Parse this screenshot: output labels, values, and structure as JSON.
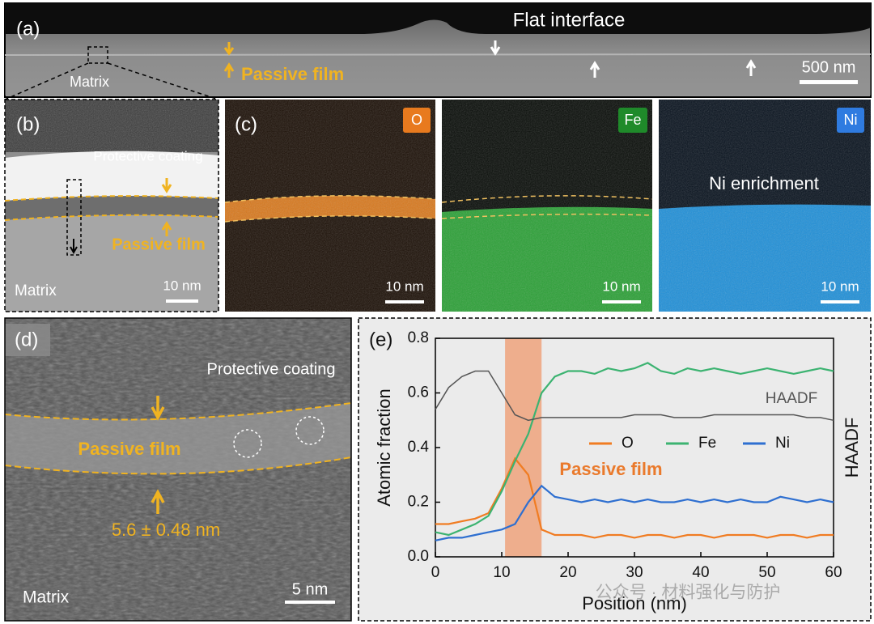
{
  "panels": {
    "a": {
      "label": "(a)",
      "flat_interface": "Flat interface",
      "passive_film": "Passive film",
      "matrix": "Matrix",
      "scale_bar": "500 nm"
    },
    "b": {
      "label": "(b)",
      "protective_coating": "Protective coating",
      "passive_film": "Passive film",
      "matrix": "Matrix",
      "scale_bar": "10 nm"
    },
    "c": {
      "label": "(c)",
      "annotation": "Ni enrichment",
      "maps": [
        {
          "element": "O",
          "scale_bar": "10 nm"
        },
        {
          "element": "Fe",
          "scale_bar": "10 nm"
        },
        {
          "element": "Ni",
          "scale_bar": "10 nm"
        }
      ]
    },
    "d": {
      "label": "(d)",
      "protective_coating": "Protective coating",
      "passive_film": "Passive film",
      "thickness": "5.6 ± 0.48 nm",
      "matrix": "Matrix",
      "scale_bar": "5 nm"
    }
  },
  "chart_data": {
    "type": "line",
    "panel_label": "(e)",
    "x_label": "Position (nm)",
    "y_label": "Atomic fraction",
    "y2_label": "HAADF",
    "annotation": "Passive film",
    "shaded_span": [
      10.5,
      16
    ],
    "xlim": [
      0,
      60
    ],
    "xticks": [
      0,
      10,
      20,
      30,
      40,
      50,
      60
    ],
    "ylim": [
      0,
      0.8
    ],
    "yticks": [
      {
        "value": 0,
        "label": "0.0"
      },
      {
        "value": 0.2,
        "label": "0.2"
      },
      {
        "value": 0.4,
        "label": "0.4"
      },
      {
        "value": 0.6,
        "label": "0.6"
      },
      {
        "value": 0.8,
        "label": "0.8"
      }
    ],
    "x": [
      0,
      2,
      4,
      6,
      8,
      10,
      12,
      14,
      16,
      18,
      20,
      22,
      24,
      26,
      28,
      30,
      32,
      34,
      36,
      38,
      40,
      42,
      44,
      46,
      48,
      50,
      52,
      54,
      56,
      58,
      60
    ],
    "series": [
      {
        "name": "O",
        "color": "#f07c22",
        "values": [
          0.12,
          0.12,
          0.13,
          0.14,
          0.16,
          0.25,
          0.36,
          0.3,
          0.1,
          0.08,
          0.08,
          0.08,
          0.07,
          0.08,
          0.08,
          0.07,
          0.08,
          0.08,
          0.07,
          0.08,
          0.08,
          0.07,
          0.08,
          0.08,
          0.08,
          0.07,
          0.08,
          0.08,
          0.07,
          0.08,
          0.08
        ]
      },
      {
        "name": "Fe",
        "color": "#3cb371",
        "values": [
          0.09,
          0.08,
          0.1,
          0.12,
          0.15,
          0.24,
          0.35,
          0.45,
          0.6,
          0.66,
          0.68,
          0.68,
          0.67,
          0.69,
          0.68,
          0.69,
          0.71,
          0.68,
          0.67,
          0.69,
          0.68,
          0.69,
          0.68,
          0.67,
          0.68,
          0.69,
          0.68,
          0.67,
          0.68,
          0.69,
          0.68
        ]
      },
      {
        "name": "Ni",
        "color": "#2e6fd0",
        "values": [
          0.06,
          0.07,
          0.07,
          0.08,
          0.09,
          0.1,
          0.12,
          0.2,
          0.26,
          0.22,
          0.21,
          0.2,
          0.21,
          0.2,
          0.21,
          0.2,
          0.21,
          0.2,
          0.2,
          0.21,
          0.2,
          0.21,
          0.2,
          0.21,
          0.2,
          0.2,
          0.22,
          0.21,
          0.2,
          0.21,
          0.2
        ]
      },
      {
        "name": "HAADF",
        "color": "#555555",
        "in_legend": false,
        "values": [
          0.54,
          0.62,
          0.66,
          0.68,
          0.68,
          0.6,
          0.52,
          0.5,
          0.51,
          0.51,
          0.51,
          0.51,
          0.51,
          0.51,
          0.51,
          0.52,
          0.52,
          0.52,
          0.51,
          0.51,
          0.51,
          0.52,
          0.52,
          0.52,
          0.52,
          0.52,
          0.52,
          0.52,
          0.51,
          0.51,
          0.5
        ]
      }
    ]
  },
  "watermark": "公众号 · 材料强化与防护"
}
